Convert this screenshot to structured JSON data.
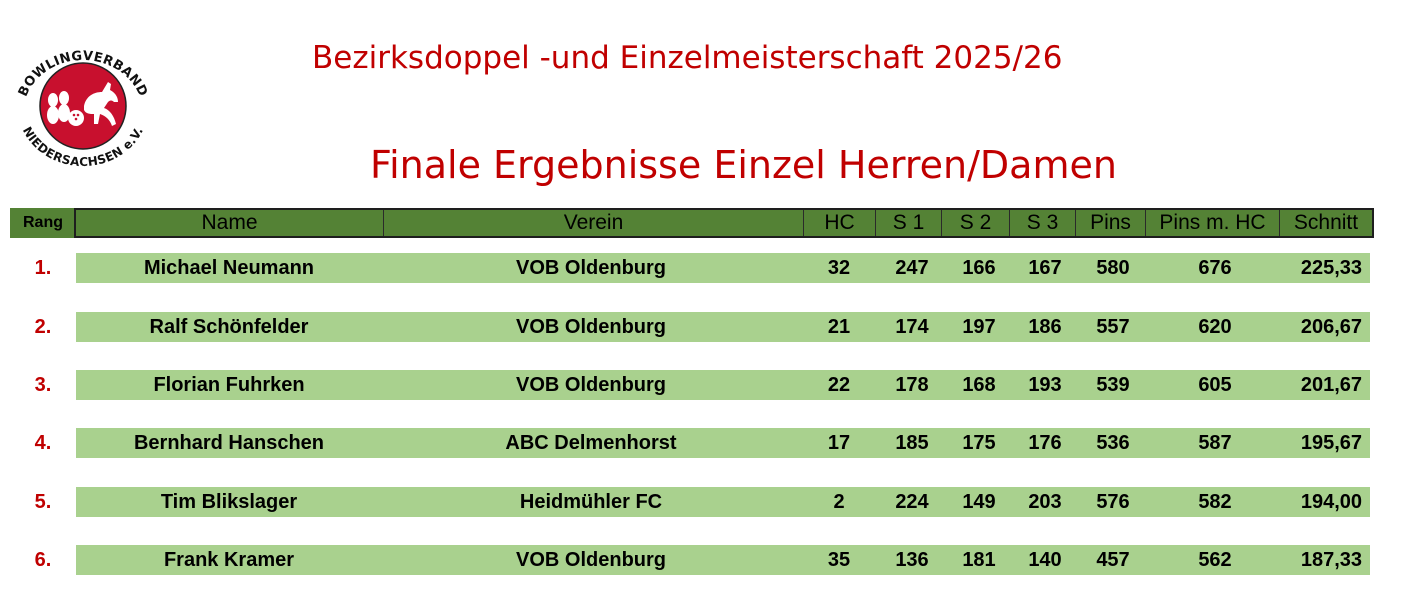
{
  "logo": {
    "top_text": "BOWLINGVERBAND",
    "bottom_text": "NIEDERSACHSEN e.V.",
    "colors": {
      "red": "#c8102e",
      "ring": "#222222"
    }
  },
  "title_main": "Bezirksdoppel -und Einzelmeisterschaft 2025/26",
  "title_sub": "Finale Ergebnisse Einzel Herren/Damen",
  "colors": {
    "header_green": "#548235",
    "row_green": "#a9d18e",
    "title_red": "#c00000"
  },
  "table": {
    "headers": {
      "rang": "Rang",
      "name": "Name",
      "verein": "Verein",
      "hc": "HC",
      "s1": "S 1",
      "s2": "S 2",
      "s3": "S 3",
      "pins": "Pins",
      "pins_hc": "Pins m. HC",
      "schnitt": "Schnitt"
    },
    "rows": [
      {
        "rang": "1.",
        "name": "Michael Neumann",
        "verein": "VOB Oldenburg",
        "hc": "32",
        "s1": "247",
        "s2": "166",
        "s3": "167",
        "pins": "580",
        "pins_hc": "676",
        "schnitt": "225,33"
      },
      {
        "rang": "2.",
        "name": "Ralf Schönfelder",
        "verein": "VOB Oldenburg",
        "hc": "21",
        "s1": "174",
        "s2": "197",
        "s3": "186",
        "pins": "557",
        "pins_hc": "620",
        "schnitt": "206,67"
      },
      {
        "rang": "3.",
        "name": "Florian Fuhrken",
        "verein": "VOB Oldenburg",
        "hc": "22",
        "s1": "178",
        "s2": "168",
        "s3": "193",
        "pins": "539",
        "pins_hc": "605",
        "schnitt": "201,67"
      },
      {
        "rang": "4.",
        "name": "Bernhard Hanschen",
        "verein": "ABC Delmenhorst",
        "hc": "17",
        "s1": "185",
        "s2": "175",
        "s3": "176",
        "pins": "536",
        "pins_hc": "587",
        "schnitt": "195,67"
      },
      {
        "rang": "5.",
        "name": "Tim Blikslager",
        "verein": "Heidmühler FC",
        "hc": "2",
        "s1": "224",
        "s2": "149",
        "s3": "203",
        "pins": "576",
        "pins_hc": "582",
        "schnitt": "194,00"
      },
      {
        "rang": "6.",
        "name": "Frank Kramer",
        "verein": "VOB Oldenburg",
        "hc": "35",
        "s1": "136",
        "s2": "181",
        "s3": "140",
        "pins": "457",
        "pins_hc": "562",
        "schnitt": "187,33"
      }
    ]
  }
}
